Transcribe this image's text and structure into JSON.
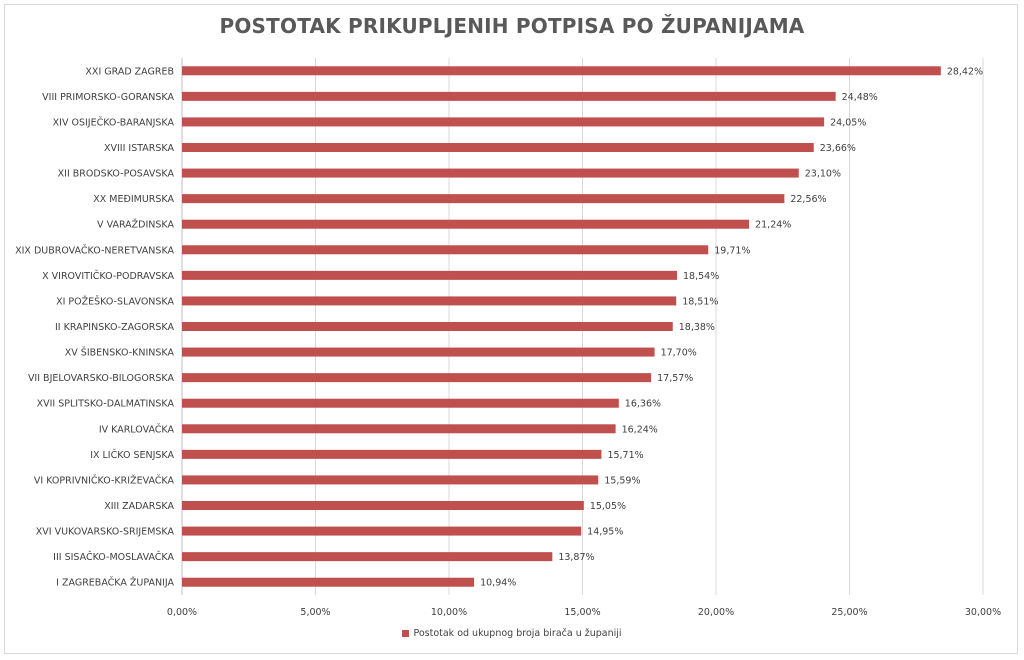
{
  "chart_data": {
    "type": "bar",
    "orientation": "horizontal",
    "title": "POSTOTAK PRIKUPLJENIH POTPISA PO ŽUPANIJAMA",
    "categories": [
      "XXI GRAD ZAGREB",
      "VIII PRIMORSKO-GORANSKA",
      "XIV OSIJEČKO-BARANJSKA",
      "XVIII ISTARSKA",
      "XII BRODSKO-POSAVSKA",
      "XX MEĐIMURSKA",
      "V VARAŽDINSKA",
      "XIX DUBROVAČKO-NERETVANSKA",
      "X VIROVITIČKO-PODRAVSKA",
      "XI POŽEŠKO-SLAVONSKA",
      "II KRAPINSKO-ZAGORSKA",
      "XV ŠIBENSKO-KNINSKA",
      "VII BJELOVARSKO-BILOGORSKA",
      "XVII SPLITSKO-DALMATINSKA",
      "IV KARLOVAČKA",
      "IX LIČKO SENJSKA",
      "VI KOPRIVNIČKO-KRIŽEVAČKA",
      "XIII ZADARSKA",
      "XVI VUKOVARSKO-SRIJEMSKA",
      "III SISAČKO-MOSLAVAČKA",
      "I ZAGREBAČKA ŽUPANIJA"
    ],
    "series": [
      {
        "name": "Postotak od ukupnog broja birača u županiji",
        "values": [
          28.42,
          24.48,
          24.05,
          23.66,
          23.1,
          22.56,
          21.24,
          19.71,
          18.54,
          18.51,
          18.38,
          17.7,
          17.57,
          16.36,
          16.24,
          15.71,
          15.59,
          15.05,
          14.95,
          13.87,
          10.94
        ],
        "value_labels": [
          "28,42%",
          "24,48%",
          "24,05%",
          "23,66%",
          "23,10%",
          "22,56%",
          "21,24%",
          "19,71%",
          "18,54%",
          "18,51%",
          "18,38%",
          "17,70%",
          "17,57%",
          "16,36%",
          "16,24%",
          "15,71%",
          "15,59%",
          "15,05%",
          "14,95%",
          "13,87%",
          "10,94%"
        ],
        "color": "#c0504d"
      }
    ],
    "xlim": [
      0,
      30
    ],
    "x_ticks": [
      0,
      5,
      10,
      15,
      20,
      25,
      30
    ],
    "x_tick_labels": [
      "0,00%",
      "5,00%",
      "10,00%",
      "15,00%",
      "20,00%",
      "25,00%",
      "30,00%"
    ],
    "grid": true,
    "gridline_color": "#d9d9d9",
    "legend_position": "bottom"
  }
}
